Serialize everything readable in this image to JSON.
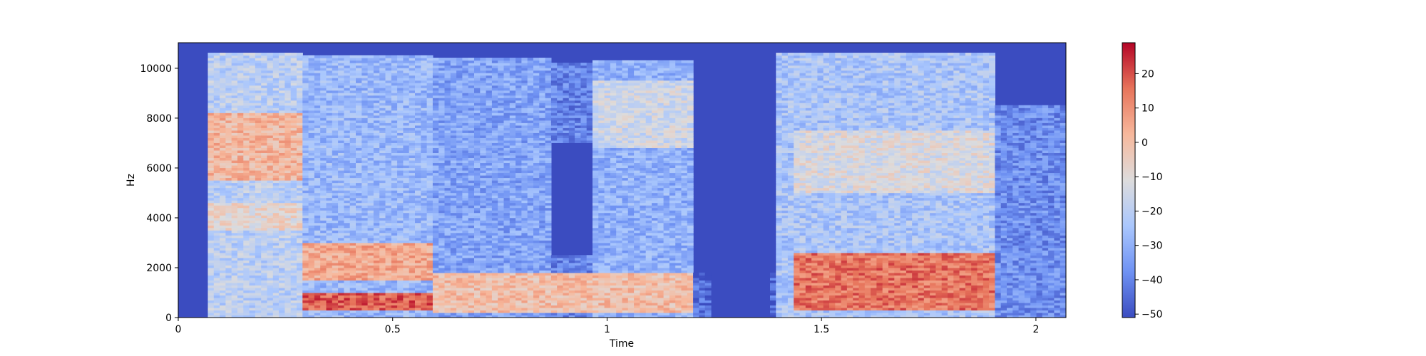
{
  "chart_data": {
    "type": "heatmap",
    "title": "",
    "xlabel": "Time",
    "ylabel": "Hz",
    "xlim": [
      0,
      2.07
    ],
    "ylim": [
      0,
      11025
    ],
    "x_ticks": [
      0,
      0.5,
      1,
      1.5,
      2
    ],
    "x_tick_labels": [
      "0",
      "0.5",
      "1",
      "1.5",
      "2"
    ],
    "y_ticks": [
      0,
      2000,
      4000,
      6000,
      8000,
      10000
    ],
    "y_tick_labels": [
      "0",
      "2000",
      "4000",
      "6000",
      "8000",
      "10000"
    ],
    "colormap": "coolwarm",
    "colormap_stops": [
      "#3b4cc0",
      "#6f92f3",
      "#aac7fd",
      "#dddcdc",
      "#f7b89c",
      "#e7745b",
      "#b40426"
    ],
    "background_color": "#3b4cc0",
    "colorbar": {
      "range": [
        -51,
        29
      ],
      "ticks": [
        -50,
        -40,
        -30,
        -20,
        -10,
        0,
        10,
        20
      ],
      "tick_labels": [
        "−50",
        "−40",
        "−30",
        "−20",
        "−10",
        "0",
        "10",
        "20"
      ]
    },
    "grid": false,
    "legend": "none",
    "segments": [
      {
        "t": [
          0.07,
          0.29
        ],
        "fmax": 10600,
        "level": -20
      },
      {
        "t": [
          0.29,
          0.6
        ],
        "fmax": 10500,
        "level": -28
      },
      {
        "t": [
          0.6,
          0.87
        ],
        "fmax": 10400,
        "level": -33
      },
      {
        "t": [
          0.87,
          0.97
        ],
        "fmax": 10200,
        "level": -40
      },
      {
        "t": [
          0.97,
          1.2
        ],
        "fmax": 10300,
        "level": -30
      },
      {
        "t": [
          1.2,
          1.4
        ],
        "fmax": 1800,
        "level": -45
      },
      {
        "t": [
          1.4,
          1.9
        ],
        "fmax": 10600,
        "level": -24
      },
      {
        "t": [
          1.9,
          2.07
        ],
        "fmax": 8500,
        "level": -38
      }
    ],
    "regions": [
      {
        "t": [
          0.07,
          0.29
        ],
        "f": [
          5500,
          8200
        ],
        "level": 2
      },
      {
        "t": [
          0.07,
          0.29
        ],
        "f": [
          3500,
          4600
        ],
        "level": -8
      },
      {
        "t": [
          0.29,
          0.6
        ],
        "f": [
          1500,
          3000
        ],
        "level": 5
      },
      {
        "t": [
          0.29,
          0.6
        ],
        "f": [
          300,
          1000
        ],
        "level": 18
      },
      {
        "t": [
          0.6,
          1.2
        ],
        "f": [
          200,
          1800
        ],
        "level": 0
      },
      {
        "t": [
          0.97,
          1.2
        ],
        "f": [
          6800,
          9500
        ],
        "level": -15
      },
      {
        "t": [
          1.44,
          1.9
        ],
        "f": [
          300,
          2600
        ],
        "level": 15
      },
      {
        "t": [
          1.44,
          1.9
        ],
        "f": [
          5000,
          7500
        ],
        "level": -12
      }
    ],
    "gaps": [
      {
        "t": [
          0.87,
          0.97
        ],
        "f": [
          2500,
          7000
        ]
      },
      {
        "t": [
          1.24,
          1.38
        ],
        "f": [
          0,
          11025
        ]
      }
    ]
  }
}
